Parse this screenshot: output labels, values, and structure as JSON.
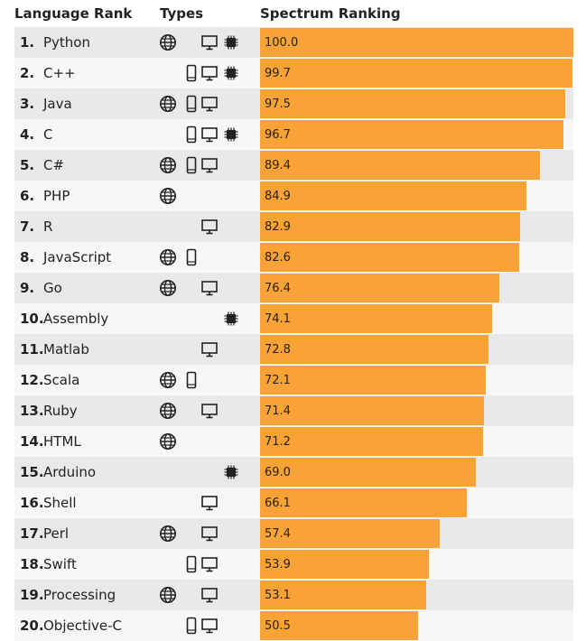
{
  "headers": {
    "rank": "Language Rank",
    "types": "Types",
    "spectrum": "Spectrum Ranking"
  },
  "chart_data": {
    "type": "bar",
    "orientation": "horizontal",
    "xlim": [
      0,
      100
    ],
    "bar_color": "#f9a235",
    "categories": [
      "Python",
      "C++",
      "Java",
      "C",
      "C#",
      "PHP",
      "R",
      "JavaScript",
      "Go",
      "Assembly",
      "Matlab",
      "Scala",
      "Ruby",
      "HTML",
      "Arduino",
      "Shell",
      "Perl",
      "Swift",
      "Processing",
      "Objective-C"
    ],
    "values": [
      100.0,
      99.7,
      97.5,
      96.7,
      89.4,
      84.9,
      82.9,
      82.6,
      76.4,
      74.1,
      72.8,
      72.1,
      71.4,
      71.2,
      69.0,
      66.1,
      57.4,
      53.9,
      53.1,
      50.5
    ]
  },
  "rows": [
    {
      "rank": "1.",
      "name": "Python",
      "score": "100.0",
      "value": 100.0,
      "web": true,
      "mobile": false,
      "desktop": true,
      "embedded": true
    },
    {
      "rank": "2.",
      "name": "C++",
      "score": "99.7",
      "value": 99.7,
      "web": false,
      "mobile": true,
      "desktop": true,
      "embedded": true
    },
    {
      "rank": "3.",
      "name": "Java",
      "score": "97.5",
      "value": 97.5,
      "web": true,
      "mobile": true,
      "desktop": true,
      "embedded": false
    },
    {
      "rank": "4.",
      "name": "C",
      "score": "96.7",
      "value": 96.7,
      "web": false,
      "mobile": true,
      "desktop": true,
      "embedded": true
    },
    {
      "rank": "5.",
      "name": "C#",
      "score": "89.4",
      "value": 89.4,
      "web": true,
      "mobile": true,
      "desktop": true,
      "embedded": false
    },
    {
      "rank": "6.",
      "name": "PHP",
      "score": "84.9",
      "value": 84.9,
      "web": true,
      "mobile": false,
      "desktop": false,
      "embedded": false
    },
    {
      "rank": "7.",
      "name": "R",
      "score": "82.9",
      "value": 82.9,
      "web": false,
      "mobile": false,
      "desktop": true,
      "embedded": false
    },
    {
      "rank": "8.",
      "name": "JavaScript",
      "score": "82.6",
      "value": 82.6,
      "web": true,
      "mobile": true,
      "desktop": false,
      "embedded": false
    },
    {
      "rank": "9.",
      "name": "Go",
      "score": "76.4",
      "value": 76.4,
      "web": true,
      "mobile": false,
      "desktop": true,
      "embedded": false
    },
    {
      "rank": "10.",
      "name": "Assembly",
      "score": "74.1",
      "value": 74.1,
      "web": false,
      "mobile": false,
      "desktop": false,
      "embedded": true
    },
    {
      "rank": "11.",
      "name": "Matlab",
      "score": "72.8",
      "value": 72.8,
      "web": false,
      "mobile": false,
      "desktop": true,
      "embedded": false
    },
    {
      "rank": "12.",
      "name": "Scala",
      "score": "72.1",
      "value": 72.1,
      "web": true,
      "mobile": true,
      "desktop": false,
      "embedded": false
    },
    {
      "rank": "13.",
      "name": "Ruby",
      "score": "71.4",
      "value": 71.4,
      "web": true,
      "mobile": false,
      "desktop": true,
      "embedded": false
    },
    {
      "rank": "14.",
      "name": "HTML",
      "score": "71.2",
      "value": 71.2,
      "web": true,
      "mobile": false,
      "desktop": false,
      "embedded": false
    },
    {
      "rank": "15.",
      "name": "Arduino",
      "score": "69.0",
      "value": 69.0,
      "web": false,
      "mobile": false,
      "desktop": false,
      "embedded": true
    },
    {
      "rank": "16.",
      "name": "Shell",
      "score": "66.1",
      "value": 66.1,
      "web": false,
      "mobile": false,
      "desktop": true,
      "embedded": false
    },
    {
      "rank": "17.",
      "name": "Perl",
      "score": "57.4",
      "value": 57.4,
      "web": true,
      "mobile": false,
      "desktop": true,
      "embedded": false
    },
    {
      "rank": "18.",
      "name": "Swift",
      "score": "53.9",
      "value": 53.9,
      "web": false,
      "mobile": true,
      "desktop": true,
      "embedded": false
    },
    {
      "rank": "19.",
      "name": "Processing",
      "score": "53.1",
      "value": 53.1,
      "web": true,
      "mobile": false,
      "desktop": true,
      "embedded": false
    },
    {
      "rank": "20.",
      "name": "Objective-C",
      "score": "50.5",
      "value": 50.5,
      "web": false,
      "mobile": true,
      "desktop": true,
      "embedded": false
    }
  ],
  "icons": {
    "web": "globe-icon",
    "mobile": "mobile-phone-icon",
    "desktop": "desktop-monitor-icon",
    "embedded": "chip-icon"
  }
}
